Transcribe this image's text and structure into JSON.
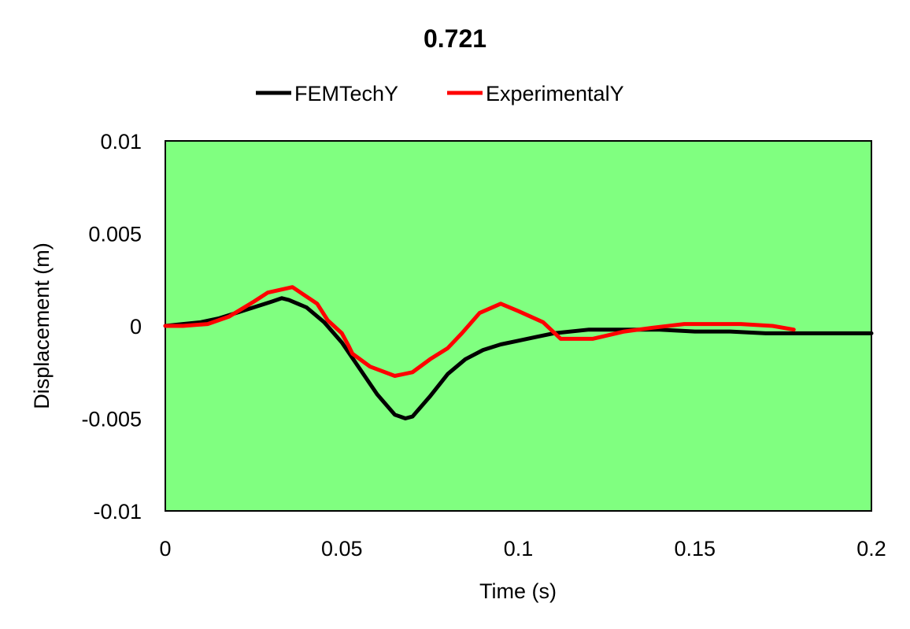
{
  "chart_data": {
    "type": "line",
    "title": "0.721",
    "xlabel": "Time (s)",
    "ylabel": "Displacement (m)",
    "xlim": [
      0,
      0.2
    ],
    "ylim": [
      -0.01,
      0.01
    ],
    "x_ticks": [
      0,
      0.05,
      0.1,
      0.15,
      0.2
    ],
    "x_tick_labels": [
      "0",
      "0.05",
      "0.1",
      "0.15",
      "0.2"
    ],
    "y_ticks": [
      0.01,
      0.005,
      0,
      -0.005,
      -0.01
    ],
    "y_tick_labels": [
      "0.01",
      "0.005",
      "0",
      "-0.005",
      "-0.01"
    ],
    "grid": false,
    "legend_position": "top",
    "plot_background": "#80FF80",
    "series": [
      {
        "name": "FEMTechY",
        "color": "#000000",
        "x": [
          0,
          0.005,
          0.01,
          0.015,
          0.02,
          0.025,
          0.03,
          0.033,
          0.035,
          0.04,
          0.045,
          0.05,
          0.055,
          0.06,
          0.065,
          0.068,
          0.07,
          0.075,
          0.08,
          0.085,
          0.09,
          0.095,
          0.1,
          0.105,
          0.11,
          0.12,
          0.13,
          0.14,
          0.15,
          0.16,
          0.17,
          0.18,
          0.19,
          0.2
        ],
        "y": [
          0,
          0.0001,
          0.0002,
          0.0004,
          0.0007,
          0.001,
          0.0013,
          0.0015,
          0.0014,
          0.001,
          0.0002,
          -0.0009,
          -0.0023,
          -0.0037,
          -0.0048,
          -0.005,
          -0.0049,
          -0.0038,
          -0.0026,
          -0.0018,
          -0.0013,
          -0.001,
          -0.0008,
          -0.0006,
          -0.0004,
          -0.0002,
          -0.0002,
          -0.0002,
          -0.0003,
          -0.0003,
          -0.0004,
          -0.0004,
          -0.0004,
          -0.0004
        ]
      },
      {
        "name": "ExperimentalY",
        "color": "#FF0000",
        "x": [
          0,
          0.005,
          0.012,
          0.018,
          0.025,
          0.029,
          0.036,
          0.043,
          0.046,
          0.05,
          0.052,
          0.053,
          0.058,
          0.065,
          0.07,
          0.075,
          0.08,
          0.084,
          0.089,
          0.095,
          0.1,
          0.107,
          0.112,
          0.121,
          0.13,
          0.138,
          0.147,
          0.155,
          0.163,
          0.172,
          0.178
        ],
        "y": [
          0,
          0,
          0.0001,
          0.0005,
          0.0013,
          0.0018,
          0.0021,
          0.0012,
          0.0003,
          -0.0004,
          -0.0011,
          -0.0015,
          -0.0022,
          -0.0027,
          -0.0025,
          -0.0018,
          -0.0012,
          -0.0004,
          0.0007,
          0.0012,
          0.0008,
          0.0002,
          -0.0007,
          -0.0007,
          -0.0003,
          -0.0001,
          0.0001,
          0.0001,
          0.0001,
          0,
          -0.0002
        ]
      }
    ]
  }
}
